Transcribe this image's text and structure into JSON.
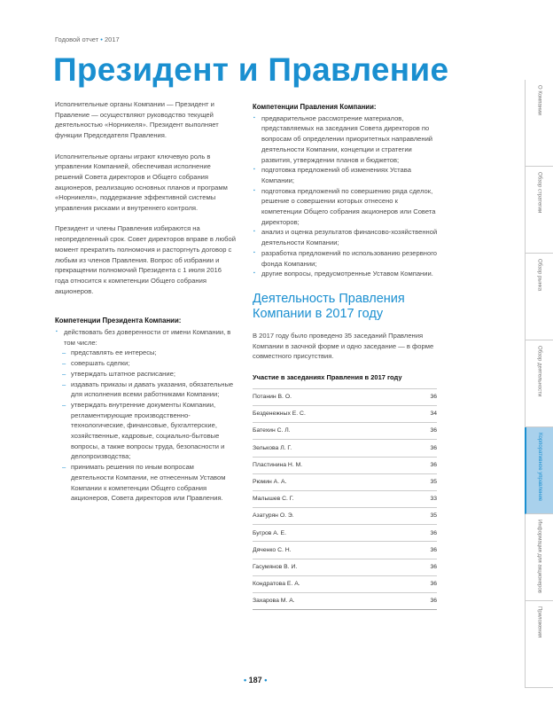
{
  "header": {
    "report": "Годовой отчет",
    "year": "2017"
  },
  "title": "Президент и Правление",
  "left": {
    "paragraphs": [
      "Исполнительные органы Компании — Президент и Правление — осуществляют руководство текущей деятельностью «Норникеля». Президент выполняет функции Председателя Правления.",
      "Исполнительные органы играют ключевую роль в управлении Компанией, обеспечивая исполнение решений Совета директоров и Общего собрания акционеров, реализацию основных планов и программ «Норникеля», поддержание эффективной системы управления рисками и внутреннего контроля.",
      "Президент и члены Правления избираются на неопределенный срок. Совет директоров вправе в любой момент прекратить полномочия и расторгнуть договор с любым из членов Правления. Вопрос об избрании и прекращении полномочий Президента с 1 июля 2016 года относится к компетенции Общего собрания акционеров."
    ],
    "president_heading": "Компетенции Президента Компании:",
    "president_main": "действовать без доверенности от имени Компании, в том числе:",
    "president_sub": [
      "представлять ее интересы;",
      "совершать сделки;",
      "утверждать штатное расписание;",
      "издавать приказы и давать указания, обязательные для исполнения всеми работниками Компании;",
      "утверждать внутренние документы Компании, регламентирующие производственно-технологические, финансовые, бухгалтерские, хозяйственные, кадровые, социально-бытовые вопросы, а также вопросы труда, безопасности и делопроизводства;",
      "принимать решения по иным вопросам деятельности Компании, не отнесенным Уставом Компании к компетенции Общего собрания акционеров, Совета директоров или Правления."
    ]
  },
  "right": {
    "board_heading": "Компетенции Правления Компании:",
    "board_items": [
      "предварительное рассмотрение материалов, представляемых на заседания Совета директоров по вопросам об определении приоритетных направлений деятельности Компании, концепции и стратегии развития, утверждении планов и бюджетов;",
      "подготовка предложений об изменениях Устава Компании;",
      "подготовка предложений по совершению ряда сделок, решение о совершении которых отнесено к компетенции Общего собрания акционеров или Совета директоров;",
      "анализ и оценка результатов финансово-хозяйственной деятельности Компании;",
      "разработка предложений по использованию резервного фонда Компании;",
      "другие вопросы, предусмотренные Уставом Компании."
    ],
    "activity_heading": "Деятельность Правления Компании в 2017 году",
    "activity_text": "В 2017 году было проведено 35 заседаний Правления Компании в заочной форме и одно заседание — в форме совместного присутствия.",
    "table_title": "Участие в заседаниях Правления в 2017 году",
    "rows": [
      {
        "name": "Потанин В. О.",
        "value": "36"
      },
      {
        "name": "Безденежных Е. С.",
        "value": "34"
      },
      {
        "name": "Батехин С. Л.",
        "value": "36"
      },
      {
        "name": "Зелькова Л. Г.",
        "value": "36"
      },
      {
        "name": "Пластинина Н. М.",
        "value": "36"
      },
      {
        "name": "Рюмин А. А.",
        "value": "35"
      },
      {
        "name": "Малышев С. Г.",
        "value": "33"
      },
      {
        "name": "Азатурян О. Э.",
        "value": "35"
      },
      {
        "name": "Бугров А. Е.",
        "value": "36"
      },
      {
        "name": "Дяченко С. Н.",
        "value": "36"
      },
      {
        "name": "Гасумянов В. И.",
        "value": "36"
      },
      {
        "name": "Кондратова Е. А.",
        "value": "36"
      },
      {
        "name": "Захарова М. А.",
        "value": "36"
      }
    ]
  },
  "tabs": [
    {
      "label": "О Компании",
      "active": false
    },
    {
      "label": "Обзор стратегии",
      "active": false
    },
    {
      "label": "Обзор рынка",
      "active": false
    },
    {
      "label": "Обзор деятельности",
      "active": false
    },
    {
      "label": "Корпоративное управление",
      "active": true
    },
    {
      "label": "Информация для акционеров",
      "active": false
    },
    {
      "label": "Приложения",
      "active": false
    }
  ],
  "page_number": "187",
  "colors": {
    "accent": "#1a8fd0",
    "active_tab": "#a9d1ec"
  }
}
